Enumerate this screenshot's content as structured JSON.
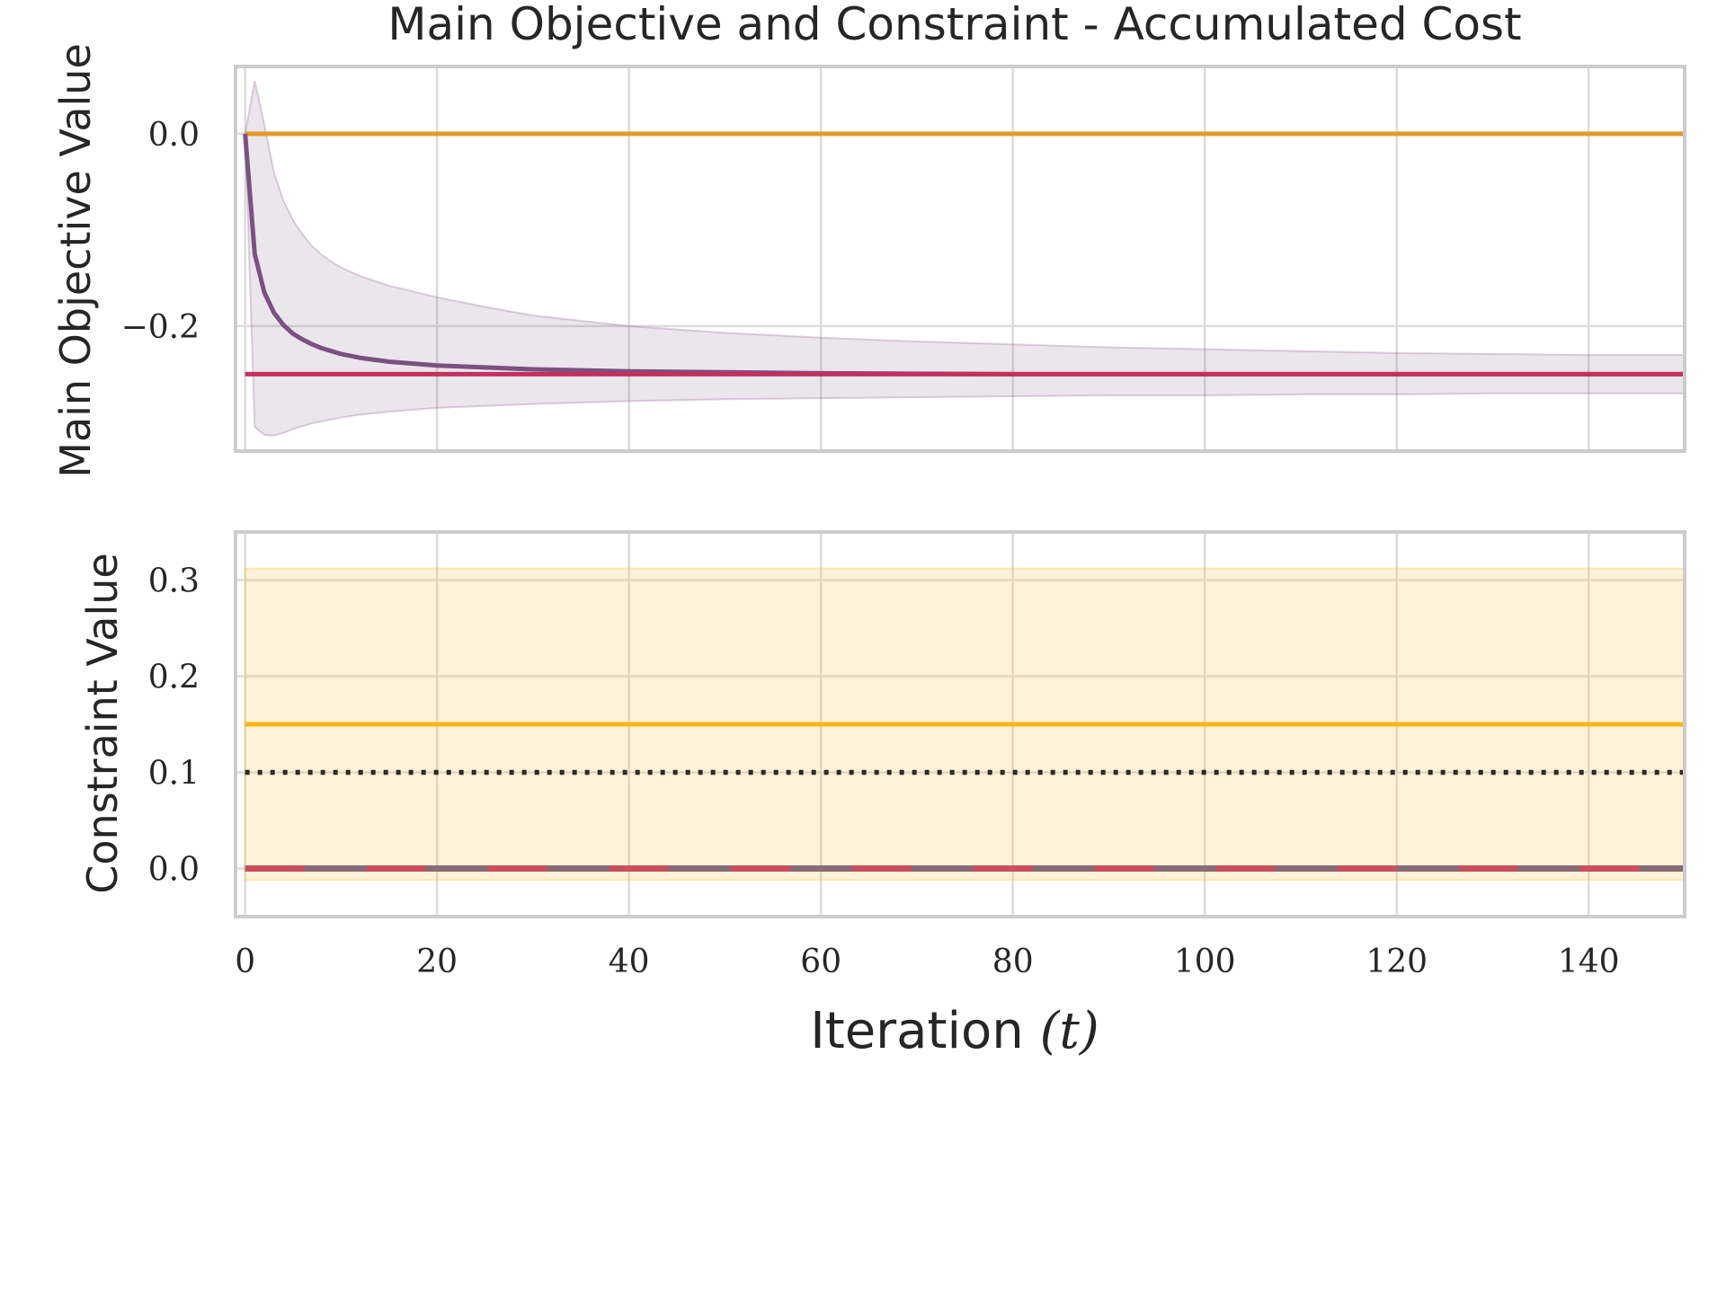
{
  "chart_data": [
    {
      "type": "line",
      "title": "Main Objective and Constraint - Accumulated Cost",
      "ylabel": "Main Objective Value",
      "xlim": [
        -1,
        150
      ],
      "ylim": [
        -0.33,
        0.07
      ],
      "xticks": [
        0,
        20,
        40,
        60,
        80,
        100,
        120,
        140
      ],
      "yticks": [
        0.0,
        -0.2
      ],
      "ytick_labels": [
        "0.0",
        "−0.2"
      ],
      "grid": true,
      "series": [
        {
          "color": "#e29a2b",
          "style": "solid",
          "x": [
            0,
            150
          ],
          "y": [
            0.0,
            0.0
          ]
        },
        {
          "color": "#7a5180",
          "style": "solid",
          "x": [
            0,
            1,
            2,
            3,
            4,
            5,
            6,
            7,
            8,
            9,
            10,
            12,
            15,
            20,
            25,
            30,
            40,
            50,
            60,
            70,
            80,
            90,
            100,
            110,
            120,
            130,
            140,
            150
          ],
          "y": [
            0.0,
            -0.125,
            -0.165,
            -0.186,
            -0.199,
            -0.208,
            -0.214,
            -0.219,
            -0.223,
            -0.226,
            -0.229,
            -0.233,
            -0.237,
            -0.241,
            -0.243,
            -0.245,
            -0.247,
            -0.248,
            -0.249,
            -0.2495,
            -0.25,
            -0.25,
            -0.25,
            -0.25,
            -0.25,
            -0.25,
            -0.25,
            -0.25
          ],
          "band_upper": [
            0.0,
            0.055,
            0.01,
            -0.04,
            -0.07,
            -0.09,
            -0.105,
            -0.117,
            -0.126,
            -0.133,
            -0.139,
            -0.148,
            -0.158,
            -0.17,
            -0.18,
            -0.189,
            -0.2,
            -0.207,
            -0.212,
            -0.216,
            -0.219,
            -0.222,
            -0.224,
            -0.226,
            -0.228,
            -0.229,
            -0.23,
            -0.23
          ],
          "band_lower": [
            0.0,
            -0.305,
            -0.313,
            -0.314,
            -0.311,
            -0.307,
            -0.304,
            -0.301,
            -0.299,
            -0.297,
            -0.295,
            -0.292,
            -0.289,
            -0.285,
            -0.283,
            -0.281,
            -0.278,
            -0.276,
            -0.275,
            -0.274,
            -0.273,
            -0.272,
            -0.272,
            -0.271,
            -0.271,
            -0.27,
            -0.27,
            -0.27
          ]
        },
        {
          "color": "#c2305e",
          "style": "solid",
          "x": [
            0,
            150
          ],
          "y": [
            -0.25,
            -0.25
          ]
        }
      ]
    },
    {
      "type": "line",
      "ylabel": "Constraint Value",
      "xlabel": "Iteration",
      "xlabel_math": "(t)",
      "xlim": [
        -1,
        150
      ],
      "ylim": [
        -0.05,
        0.35
      ],
      "xticks": [
        0,
        20,
        40,
        60,
        80,
        100,
        120,
        140
      ],
      "yticks": [
        0.0,
        0.1,
        0.2,
        0.3
      ],
      "ytick_labels": [
        "0.0",
        "0.1",
        "0.2",
        "0.3"
      ],
      "grid": true,
      "band": {
        "color": "#f9c74f",
        "x": [
          0,
          150
        ],
        "upper": 0.312,
        "lower": -0.012
      },
      "series": [
        {
          "color": "#f7b514",
          "style": "solid",
          "x": [
            0,
            150
          ],
          "y": [
            0.15,
            0.15
          ]
        },
        {
          "color": "#2e2a22",
          "style": "dotted",
          "x": [
            0,
            150
          ],
          "y": [
            0.1,
            0.1
          ]
        },
        {
          "color": "#8a6a78",
          "style": "solid",
          "x": [
            0,
            150
          ],
          "y": [
            0.0,
            0.0
          ]
        },
        {
          "color": "#c9505f",
          "style": "dashed",
          "x": [
            0,
            150
          ],
          "y": [
            0.0,
            0.0
          ]
        }
      ]
    }
  ]
}
